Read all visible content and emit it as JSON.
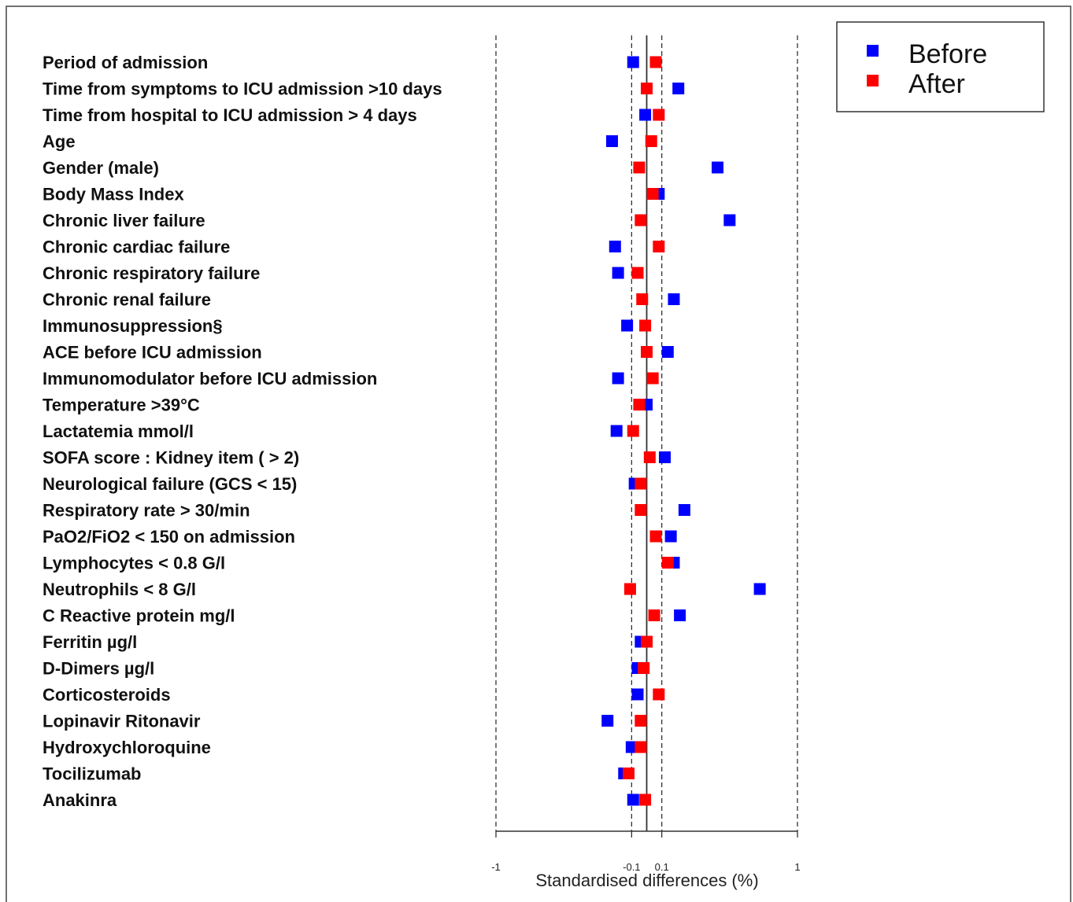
{
  "chart_data": {
    "type": "scatter",
    "xlabel": "Standardised differences (%)",
    "xlim": [
      -1,
      1
    ],
    "xticks": [
      -1,
      -0.1,
      0.1,
      1
    ],
    "xtick_labels": [
      "-1",
      "-0.1",
      "0.1",
      "1"
    ],
    "reference_lines": [
      -1,
      -0.1,
      0,
      0.1,
      1
    ],
    "legend_position": "top-right",
    "categories": [
      "Period of admission",
      "Time from symptoms to ICU admission >10 days",
      "Time from hospital to ICU admission > 4 days",
      "Age",
      "Gender (male)",
      "Body Mass Index",
      "Chronic liver failure",
      "Chronic cardiac failure",
      "Chronic respiratory failure",
      "Chronic renal failure",
      "Immunosuppression§",
      "ACE before ICU admission",
      "Immunomodulator before ICU admission",
      "Temperature >39°C",
      "Lactatemia mmol/l",
      "SOFA score : Kidney item ( > 2)",
      "Neurological failure (GCS < 15)",
      "Respiratory rate > 30/min",
      "PaO2/FiO2 < 150 on admission",
      "Lymphocytes < 0.8 G/l",
      "Neutrophils < 8 G/l",
      "C Reactive protein mg/l",
      "Ferritin µg/l",
      "D-Dimers µg/l",
      "Corticosteroids",
      "Lopinavir Ritonavir",
      "Hydroxychloroquine",
      "Tocilizumab",
      "Anakinra"
    ],
    "series": [
      {
        "name": "Before",
        "color": "#0000ff",
        "values": [
          -0.09,
          0.21,
          -0.01,
          -0.23,
          0.47,
          0.08,
          0.55,
          -0.21,
          -0.19,
          0.18,
          -0.13,
          0.14,
          -0.19,
          0.0,
          -0.2,
          0.12,
          -0.08,
          0.25,
          0.16,
          0.18,
          0.75,
          0.22,
          -0.04,
          -0.06,
          -0.06,
          -0.26,
          -0.1,
          -0.15,
          -0.09
        ]
      },
      {
        "name": "After",
        "color": "#ff0000",
        "values": [
          0.06,
          0.0,
          0.08,
          0.03,
          -0.05,
          0.04,
          -0.04,
          0.08,
          -0.06,
          -0.03,
          -0.01,
          0.0,
          0.04,
          -0.05,
          -0.09,
          0.02,
          -0.04,
          -0.04,
          0.06,
          0.14,
          -0.11,
          0.05,
          0.0,
          -0.02,
          0.08,
          -0.04,
          -0.04,
          -0.12,
          -0.01
        ]
      }
    ]
  }
}
